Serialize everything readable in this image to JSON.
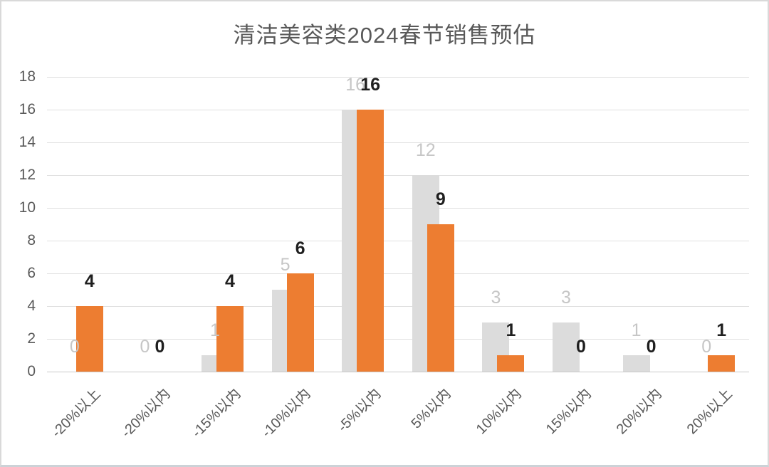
{
  "chart": {
    "title": "清洁美容类2024春节销售预估"
  },
  "chart_data": {
    "type": "bar",
    "title": "清洁美容类2024春节销售预估",
    "categories": [
      "-20%以上",
      "-20%以内",
      "-15%以内",
      "-10%以内",
      "-5%以内",
      "5%以内",
      "10%以内",
      "15%以内",
      "20%以内",
      "20%以上"
    ],
    "series": [
      {
        "name": "gray",
        "color": "#dcdcdc",
        "label_color": "#c6c6c6",
        "values": [
          0,
          0,
          1,
          5,
          16,
          12,
          3,
          3,
          1,
          0
        ]
      },
      {
        "name": "orange",
        "color": "#ed7d31",
        "label_color": "#1f1f1f",
        "values": [
          4,
          0,
          4,
          6,
          16,
          9,
          1,
          0,
          0,
          1
        ]
      }
    ],
    "y_ticks": [
      0,
      2,
      4,
      6,
      8,
      10,
      12,
      14,
      16,
      18
    ],
    "ylim": [
      0,
      18
    ],
    "grid": true,
    "legend": false,
    "value_labels": true,
    "colors": {
      "title": "#595959",
      "axis_labels": "#595959",
      "gridline": "#e0e0e0",
      "axis_line": "#c8c8c8",
      "background": "#ffffff",
      "border": "#d9d9d9"
    }
  }
}
